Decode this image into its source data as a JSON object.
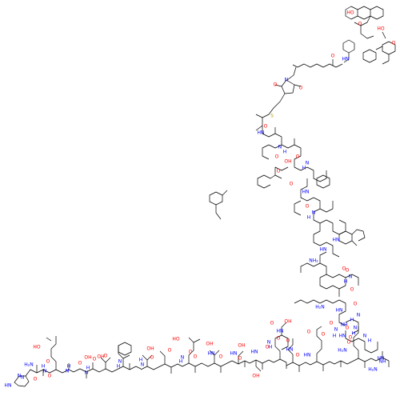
{
  "colors": {
    "background": "#ffffff",
    "bond": "#000000",
    "oxygen": "#ff0000",
    "nitrogen": "#0000ff",
    "sulfur": "#b8a000"
  },
  "fragments": [
    {
      "id": "fluorescein-xanthene",
      "atoms": [
        {
          "t": "HO",
          "e": "O"
        },
        {
          "t": "O",
          "e": "O"
        },
        {
          "t": "HO",
          "e": "O"
        },
        {
          "t": "O",
          "e": "O"
        }
      ]
    },
    {
      "id": "fluorescein-linker",
      "atoms": [
        {
          "t": "HN",
          "e": "N"
        },
        {
          "t": "O",
          "e": "O"
        }
      ]
    },
    {
      "id": "maleimide-cys",
      "atoms": [
        {
          "t": "N",
          "e": "N"
        },
        {
          "t": "O",
          "e": "O"
        },
        {
          "t": "O",
          "e": "O"
        },
        {
          "t": "S",
          "e": "S"
        }
      ]
    },
    {
      "id": "his-glu-gly-thr-phe-thr",
      "atoms": [
        {
          "t": "HN",
          "e": "N"
        },
        {
          "t": "N",
          "e": "N"
        },
        {
          "t": "H₂N",
          "e": "N"
        },
        {
          "t": "N",
          "e": "N"
        },
        {
          "t": "O",
          "e": "O"
        },
        {
          "t": "HO",
          "e": "O"
        },
        {
          "t": "O",
          "e": "O"
        },
        {
          "t": "H",
          "e": "N"
        },
        {
          "t": "N",
          "e": "N"
        },
        {
          "t": "O",
          "e": "O"
        },
        {
          "t": "H",
          "e": "N"
        },
        {
          "t": "N",
          "e": "N"
        },
        {
          "t": "O",
          "e": "O"
        },
        {
          "t": "OH",
          "e": "O"
        },
        {
          "t": "H",
          "e": "N"
        },
        {
          "t": "N",
          "e": "N"
        },
        {
          "t": "O",
          "e": "O"
        },
        {
          "t": "OH",
          "e": "O"
        },
        {
          "t": "O",
          "e": "O"
        },
        {
          "t": "N",
          "e": "N"
        },
        {
          "t": "H",
          "e": "N"
        }
      ]
    },
    {
      "id": "ser-asp-val-ser-ser-tyr",
      "atoms": [
        {
          "t": "H",
          "e": "N"
        },
        {
          "t": "N",
          "e": "N"
        },
        {
          "t": "O",
          "e": "O"
        },
        {
          "t": "OH",
          "e": "O"
        },
        {
          "t": "O",
          "e": "O"
        },
        {
          "t": "HO",
          "e": "O"
        },
        {
          "t": "O",
          "e": "O"
        },
        {
          "t": "N",
          "e": "N"
        },
        {
          "t": "H",
          "e": "N"
        },
        {
          "t": "O",
          "e": "O"
        },
        {
          "t": "HN",
          "e": "N"
        },
        {
          "t": "O",
          "e": "O"
        },
        {
          "t": "OH",
          "e": "O"
        },
        {
          "t": "HN",
          "e": "N"
        },
        {
          "t": "O",
          "e": "O"
        },
        {
          "t": "OH",
          "e": "O"
        },
        {
          "t": "HN",
          "e": "N"
        },
        {
          "t": "O",
          "e": "O"
        },
        {
          "t": "OH",
          "e": "O"
        }
      ]
    },
    {
      "id": "leu-glu-gly-gln-ala-ala",
      "atoms": [
        {
          "t": "HN",
          "e": "N"
        },
        {
          "t": "O",
          "e": "O"
        },
        {
          "t": "N",
          "e": "N"
        },
        {
          "t": "H",
          "e": "N"
        },
        {
          "t": "O",
          "e": "O"
        },
        {
          "t": "OH",
          "e": "O"
        },
        {
          "t": "O",
          "e": "O"
        },
        {
          "t": "HN",
          "e": "N"
        },
        {
          "t": "O",
          "e": "O"
        },
        {
          "t": "O",
          "e": "O"
        },
        {
          "t": "NH₂",
          "e": "N"
        },
        {
          "t": "HN",
          "e": "N"
        },
        {
          "t": "O",
          "e": "O"
        },
        {
          "t": "N",
          "e": "N"
        },
        {
          "t": "H",
          "e": "N"
        },
        {
          "t": "O",
          "e": "O"
        },
        {
          "t": "NH",
          "e": "N"
        },
        {
          "t": "N",
          "e": "N"
        },
        {
          "t": "H",
          "e": "N"
        }
      ]
    },
    {
      "id": "glu-ile-phe-ala-trp",
      "atoms": [
        {
          "t": "O",
          "e": "O"
        },
        {
          "t": "HN",
          "e": "N"
        },
        {
          "t": "O",
          "e": "O"
        },
        {
          "t": "OH",
          "e": "O"
        },
        {
          "t": "O",
          "e": "O"
        },
        {
          "t": "N",
          "e": "N"
        },
        {
          "t": "H",
          "e": "N"
        },
        {
          "t": "O",
          "e": "O"
        },
        {
          "t": "N",
          "e": "N"
        },
        {
          "t": "H",
          "e": "N"
        },
        {
          "t": "O",
          "e": "O"
        },
        {
          "t": "HN",
          "e": "N"
        },
        {
          "t": "O",
          "e": "O"
        },
        {
          "t": "N",
          "e": "N"
        },
        {
          "t": "H",
          "e": "N"
        },
        {
          "t": "HN",
          "e": "N"
        }
      ]
    },
    {
      "id": "leu-val-lys-gly-arg",
      "atoms": [
        {
          "t": "HN",
          "e": "N"
        },
        {
          "t": "O",
          "e": "O"
        },
        {
          "t": "O",
          "e": "O"
        },
        {
          "t": "N",
          "e": "N"
        },
        {
          "t": "H",
          "e": "N"
        },
        {
          "t": "O",
          "e": "O"
        },
        {
          "t": "HN",
          "e": "N"
        },
        {
          "t": "H₂N",
          "e": "N"
        },
        {
          "t": "O",
          "e": "O"
        },
        {
          "t": "N",
          "e": "N"
        },
        {
          "t": "H",
          "e": "N"
        },
        {
          "t": "O",
          "e": "O"
        },
        {
          "t": "HN",
          "e": "N"
        },
        {
          "t": "O",
          "e": "O"
        },
        {
          "t": "N",
          "e": "N"
        },
        {
          "t": "H",
          "e": "N"
        },
        {
          "t": "H₂N",
          "e": "N"
        },
        {
          "t": "O",
          "e": "O"
        },
        {
          "t": "HN",
          "e": "N"
        },
        {
          "t": "NH",
          "e": "N"
        },
        {
          "t": "H₂N",
          "e": "N"
        }
      ]
    }
  ]
}
